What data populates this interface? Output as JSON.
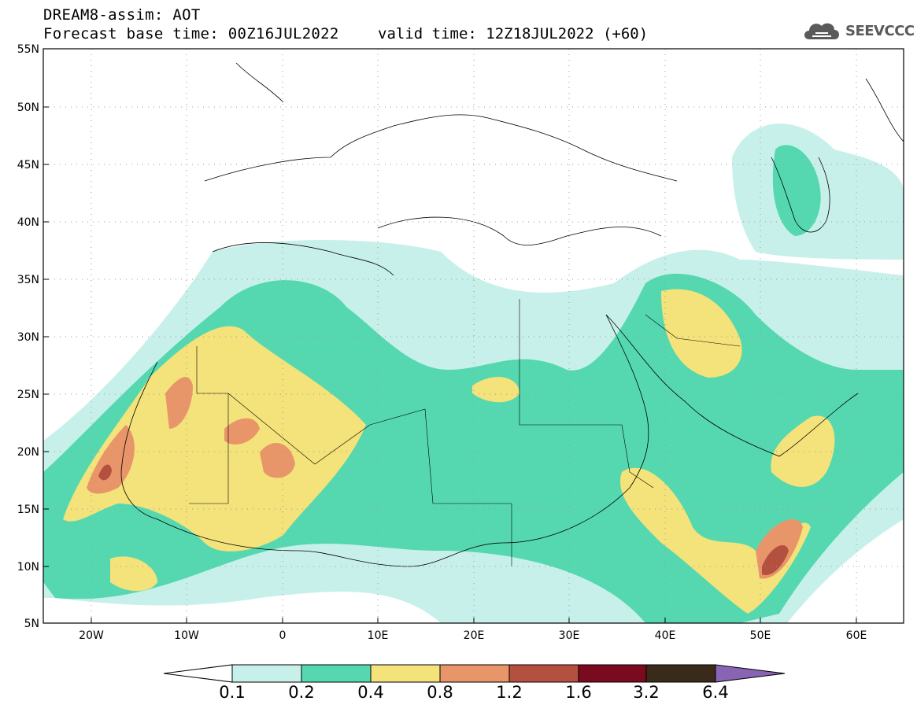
{
  "header": {
    "line1": "DREAM8-assim: AOT",
    "line2": "Forecast base time: 00Z16JUL2022",
    "valid": "valid time: 12Z18JUL2022 (+60)"
  },
  "logo": {
    "text": "SEEVCCC",
    "icon": "cloud-icon"
  },
  "map": {
    "projection": "lat-lon",
    "lon_range": [
      -25,
      65
    ],
    "lat_range": [
      5,
      55
    ],
    "lat_ticks": [
      "55N",
      "50N",
      "45N",
      "40N",
      "35N",
      "30N",
      "25N",
      "20N",
      "15N",
      "10N",
      "5N"
    ],
    "lon_ticks": [
      "20W",
      "10W",
      "0",
      "10E",
      "20E",
      "30E",
      "40E",
      "50E",
      "60E"
    ],
    "grid": "dotted"
  },
  "colorbar": {
    "labels": [
      "0.1",
      "0.2",
      "0.4",
      "0.8",
      "1.2",
      "1.6",
      "3.2",
      "6.4"
    ],
    "colors": [
      "#ffffff",
      "#c8f0ea",
      "#55d8b0",
      "#f4e27a",
      "#e8956a",
      "#b45040",
      "#7a0a1e",
      "#3a2a1a",
      "#8a64b4"
    ]
  }
}
